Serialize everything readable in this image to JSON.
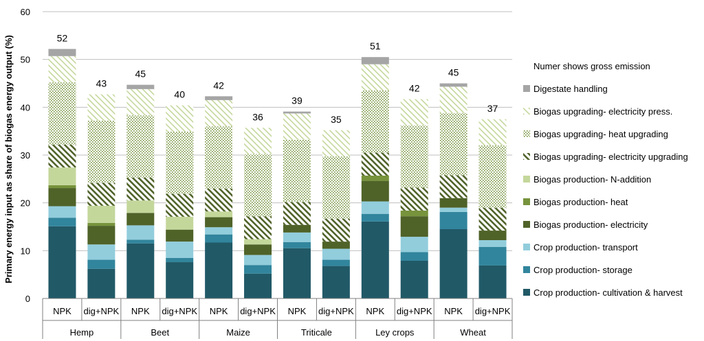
{
  "colors": {
    "digestate": "#a5a5a5",
    "upg_press": "#c4d79b",
    "upg_heat": "#76933c",
    "upg_elec": "#4f6228",
    "n_add": "#c4d79b",
    "heat": "#77933c",
    "elec": "#4f6228",
    "transport": "#92cddc",
    "storage": "#31859c",
    "cultivation": "#215967",
    "grid": "#bfbfbf",
    "axis": "#7f7f7f"
  },
  "chart_data": {
    "type": "bar",
    "stacked": true,
    "ylabel": "Primary energy input as share of biogas energy output (%)",
    "ylim": [
      0,
      60
    ],
    "yticks": [
      0,
      10,
      20,
      30,
      40,
      50,
      60
    ],
    "legend_title": "Numer shows gross emission",
    "groups": [
      "Hemp",
      "Beet",
      "Maize",
      "Triticale",
      "Ley crops",
      "Wheat"
    ],
    "categories": [
      "NPK",
      "dig+NPK",
      "NPK",
      "dig+NPK",
      "NPK",
      "dig+NPK",
      "NPK",
      "dig+NPK",
      "NPK",
      "dig+NPK",
      "NPK",
      "dig+NPK"
    ],
    "totals": [
      "52",
      "43",
      "45",
      "40",
      "42",
      "36",
      "39",
      "35",
      "51",
      "42",
      "45",
      "37"
    ],
    "series": [
      {
        "key": "cultivation",
        "name": "Crop production- cultivation & harvest",
        "pattern": "solid",
        "values": [
          15.1,
          6.2,
          11.5,
          7.6,
          11.7,
          5.2,
          10.5,
          6.8,
          16.1,
          7.9,
          14.5,
          6.9
        ]
      },
      {
        "key": "storage",
        "name": "Crop production- storage",
        "pattern": "solid",
        "values": [
          1.8,
          1.9,
          0.8,
          0.9,
          1.7,
          1.8,
          1.3,
          1.3,
          1.6,
          1.8,
          3.6,
          3.9
        ]
      },
      {
        "key": "transport",
        "name": "Crop production- transport",
        "pattern": "solid",
        "values": [
          2.4,
          3.2,
          3.0,
          3.4,
          1.5,
          2.1,
          2.0,
          2.3,
          2.6,
          3.2,
          0.9,
          1.4
        ]
      },
      {
        "key": "elec",
        "name": "Biogas production- electricity",
        "pattern": "solid",
        "values": [
          3.8,
          3.9,
          2.6,
          2.5,
          2.1,
          2.2,
          1.6,
          1.5,
          4.3,
          4.3,
          2.0,
          2.0
        ]
      },
      {
        "key": "heat",
        "name": "Biogas production- heat",
        "pattern": "solid",
        "values": [
          0.6,
          0.6,
          0.0,
          0.0,
          0.0,
          0.0,
          0.0,
          0.0,
          1.1,
          1.2,
          0.0,
          0.0
        ]
      },
      {
        "key": "n_add",
        "name": "Biogas production- N-addition",
        "pattern": "solid",
        "values": [
          3.7,
          3.6,
          2.6,
          2.7,
          1.2,
          1.1,
          0.0,
          0.0,
          0.0,
          0.0,
          0.0,
          0.0
        ]
      },
      {
        "key": "upg_elec",
        "name": "Biogas upgrading- electricity upgrading",
        "pattern": "diag",
        "values": [
          4.8,
          4.8,
          4.8,
          4.8,
          4.8,
          4.8,
          4.8,
          4.8,
          4.8,
          4.8,
          4.8,
          4.8
        ]
      },
      {
        "key": "upg_heat",
        "name": "Biogas upgrading- heat upgrading",
        "pattern": "dots",
        "values": [
          13.0,
          13.0,
          13.0,
          13.0,
          13.0,
          13.0,
          13.0,
          13.0,
          13.0,
          13.0,
          13.0,
          13.0
        ]
      },
      {
        "key": "upg_press",
        "name": "Biogas upgrading- electricity press.",
        "pattern": "lightdiag",
        "values": [
          5.5,
          5.5,
          5.5,
          5.5,
          5.5,
          5.5,
          5.5,
          5.5,
          5.5,
          5.5,
          5.5,
          5.5
        ]
      },
      {
        "key": "digestate",
        "name": "Digestate handling",
        "pattern": "solid",
        "values": [
          1.5,
          0.0,
          0.9,
          0.0,
          0.8,
          0.0,
          0.4,
          0.0,
          1.5,
          0.0,
          0.7,
          0.0
        ]
      }
    ]
  }
}
